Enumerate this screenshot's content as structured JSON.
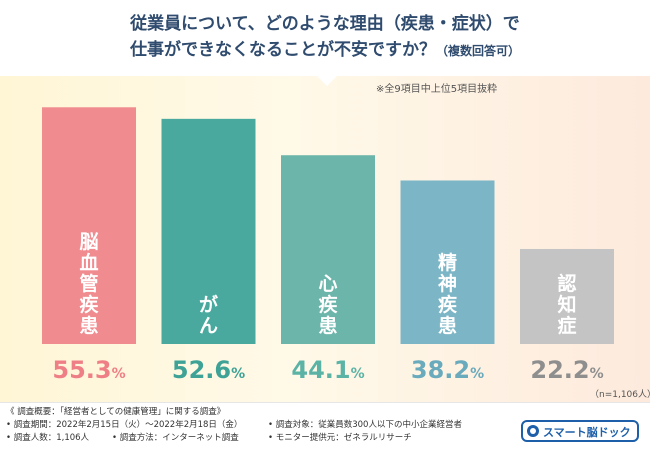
{
  "title": {
    "line1": "従業員について、どのような理由（疾患・症状）で",
    "line2": "仕事ができなくなることが不安ですか？",
    "line2_small": "（複数回答可）"
  },
  "subnote": "※全9項目中上位5項目抜粋",
  "n_note": "（n=1,106人）",
  "colors": {
    "bar1": "#f08b8f",
    "bar2": "#49a99e",
    "bar3": "#6bb5aa",
    "bar4": "#7cb5c5",
    "bar5": "#c4c4c4",
    "pct1": "#ef7f86",
    "pct2": "#3ea396",
    "pct3": "#5bb3a6",
    "pct4": "#6aaabd",
    "pct5": "#8e8e8e"
  },
  "chart_data": {
    "type": "bar",
    "title": "従業員について、どのような理由（疾患・症状）で仕事ができなくなることが不安ですか？（複数回答可）",
    "categories": [
      "脳血管疾患",
      "がん",
      "心疾患",
      "精神疾患",
      "認知症"
    ],
    "values": [
      55.3,
      52.6,
      44.1,
      38.2,
      22.2
    ],
    "labels": [
      "55.3",
      "52.6",
      "44.1",
      "38.2",
      "22.2"
    ],
    "unit": "%",
    "ylim": [
      0,
      57
    ],
    "xlabel": "",
    "ylabel": "",
    "grid": false
  },
  "footer": {
    "overview": "《 調査概要：「経営者としての健康管理」に関する調査》",
    "period": "• 調査期間：2022年2月15日（火）〜2022年2月18日（金）",
    "respondents": "• 調査人数：1,106人",
    "method": "• 調査方法：インターネット調査",
    "target": "• 調査対象：従業員数300人以下の中小企業経営者",
    "provider": "• モニター提供元：ゼネラルリサーチ"
  },
  "logo": {
    "text": "スマート脳ドック"
  }
}
